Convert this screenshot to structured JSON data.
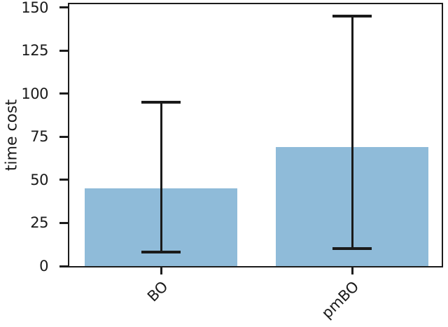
{
  "chart_data": {
    "type": "bar",
    "categories": [
      "BO",
      "pmBO"
    ],
    "values": [
      45,
      69
    ],
    "error_low": [
      8,
      10
    ],
    "error_high": [
      95,
      145
    ],
    "title": "",
    "xlabel": "",
    "ylabel": "time cost",
    "ylim": [
      0,
      152
    ],
    "yticks": [
      0,
      25,
      50,
      75,
      100,
      125,
      150
    ],
    "x_tick_rotation": 45,
    "grid": false,
    "legend": "none",
    "frame": "full-box",
    "bar_color": "#8fbbd9",
    "error_color": "#1a1a1a",
    "spine_color": "#1c1c1c",
    "text_color": "#1a1a1a",
    "background_color": "#ffffff"
  }
}
